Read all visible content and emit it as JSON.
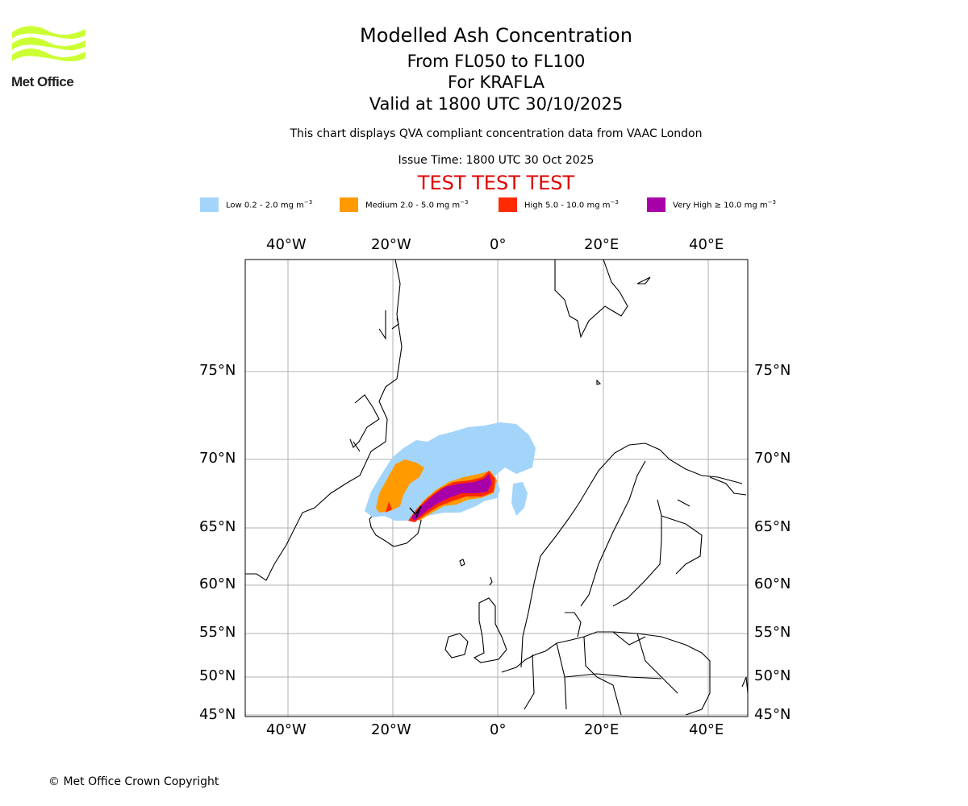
{
  "logo": {
    "text": "Met Office",
    "color": "#ccff33"
  },
  "title": {
    "line1": "Modelled Ash Concentration",
    "line2": "From FL050 to FL100",
    "line3": "For KRAFLA",
    "line4": "Valid at 1800 UTC 30/10/2025"
  },
  "subtitle": "This chart displays QVA compliant concentration data from VAAC London",
  "issue_time": "Issue Time: 1800 UTC 30 Oct 2025",
  "test_banner": "TEST TEST TEST",
  "test_color": "#e00000",
  "legend": [
    {
      "prefix": "Low 0.2 - 2.0 mg m",
      "color": "#a3d5fb"
    },
    {
      "prefix": "Medium 2.0 - 5.0 mg m",
      "color": "#ff9a00"
    },
    {
      "prefix": "High 5.0 - 10.0 mg m",
      "color": "#ff2a00"
    },
    {
      "prefix": "Very High ≥ 10.0 mg m",
      "color": "#a800a8"
    }
  ],
  "legend_exponent": "−3",
  "axes": {
    "lon_labels": [
      "40°W",
      "20°W",
      "0°",
      "20°E",
      "40°E"
    ],
    "lat_labels": [
      "75°N",
      "70°N",
      "65°N",
      "60°N",
      "55°N",
      "50°N",
      "45°N"
    ]
  },
  "copyright": "© Met Office Crown Copyright"
}
